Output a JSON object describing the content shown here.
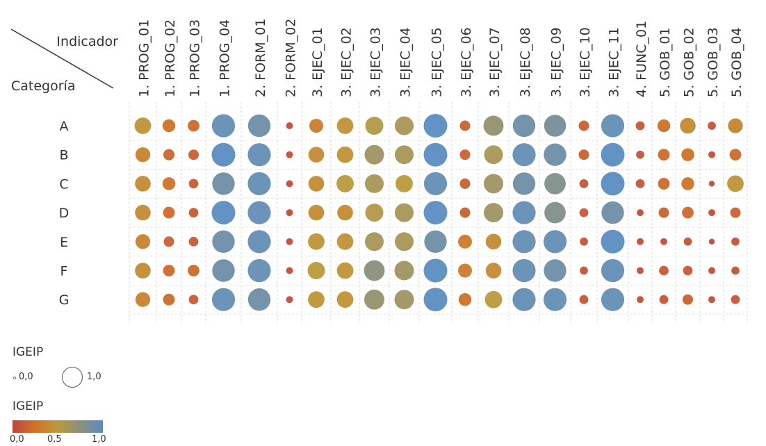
{
  "chart_data": {
    "type": "scatter",
    "corner_header": {
      "top_right": "Indicador",
      "bottom_left": "Categoría"
    },
    "columns": [
      "1. PROG_01",
      "1. PROG_02",
      "1. PROG_03",
      "1. PROG_04",
      "2. FORM_01",
      "2. FORM_02",
      "3. EJEC_01",
      "3. EJEC_02",
      "3. EJEC_03",
      "3. EJEC_04",
      "3. EJEC_05",
      "3. EJEC_06",
      "3. EJEC_07",
      "3. EJEC_08",
      "3. EJEC_09",
      "3. EJEC_10",
      "3. EJEC_11",
      "4. FUNC_01",
      "5. GOB_01",
      "5. GOB_02",
      "5. GOB_03",
      "5. GOB_04"
    ],
    "rows": [
      "A",
      "B",
      "C",
      "D",
      "E",
      "F",
      "G"
    ],
    "values": [
      [
        0.45,
        0.25,
        0.2,
        0.95,
        0.9,
        0.05,
        0.3,
        0.45,
        0.55,
        0.6,
        1.0,
        0.15,
        0.7,
        0.9,
        0.85,
        0.15,
        0.95,
        0.1,
        0.25,
        0.4,
        0.08,
        0.35
      ],
      [
        0.35,
        0.18,
        0.15,
        1.0,
        0.95,
        0.05,
        0.4,
        0.45,
        0.65,
        0.6,
        1.0,
        0.15,
        0.6,
        0.95,
        0.9,
        0.15,
        1.0,
        0.08,
        0.2,
        0.25,
        0.05,
        0.2
      ],
      [
        0.4,
        0.25,
        0.12,
        0.9,
        0.95,
        0.05,
        0.4,
        0.5,
        0.6,
        0.5,
        0.95,
        0.15,
        0.65,
        0.9,
        0.8,
        0.1,
        1.0,
        0.1,
        0.2,
        0.25,
        0.03,
        0.45
      ],
      [
        0.4,
        0.2,
        0.12,
        1.0,
        0.95,
        0.05,
        0.4,
        0.4,
        0.55,
        0.6,
        1.0,
        0.15,
        0.65,
        0.95,
        0.8,
        0.1,
        0.9,
        0.05,
        0.15,
        0.2,
        0.05,
        0.15
      ],
      [
        0.35,
        0.15,
        0.12,
        0.9,
        0.95,
        0.05,
        0.45,
        0.45,
        0.6,
        0.6,
        0.9,
        0.3,
        0.4,
        0.95,
        0.95,
        0.08,
        1.0,
        0.05,
        0.05,
        0.08,
        0.03,
        0.08
      ],
      [
        0.4,
        0.2,
        0.2,
        0.9,
        0.95,
        0.05,
        0.5,
        0.45,
        0.75,
        0.65,
        1.0,
        0.3,
        0.4,
        0.95,
        0.9,
        0.08,
        0.95,
        0.05,
        0.12,
        0.12,
        0.05,
        0.08
      ],
      [
        0.35,
        0.2,
        0.12,
        0.95,
        0.9,
        0.05,
        0.45,
        0.45,
        0.7,
        0.65,
        1.0,
        0.25,
        0.5,
        0.95,
        0.95,
        0.1,
        0.95,
        0.05,
        0.1,
        0.15,
        0.05,
        0.1
      ]
    ],
    "size_legend": {
      "title": "IGEIP",
      "min_label": "0,0",
      "max_label": "1,0"
    },
    "color_legend": {
      "title": "IGEIP",
      "ticks": [
        "0,0",
        "0,5",
        "1,0"
      ],
      "stops": [
        "#c0443d",
        "#d07226",
        "#bb9a3b",
        "#8a8f7c",
        "#5b8dc2"
      ]
    }
  }
}
